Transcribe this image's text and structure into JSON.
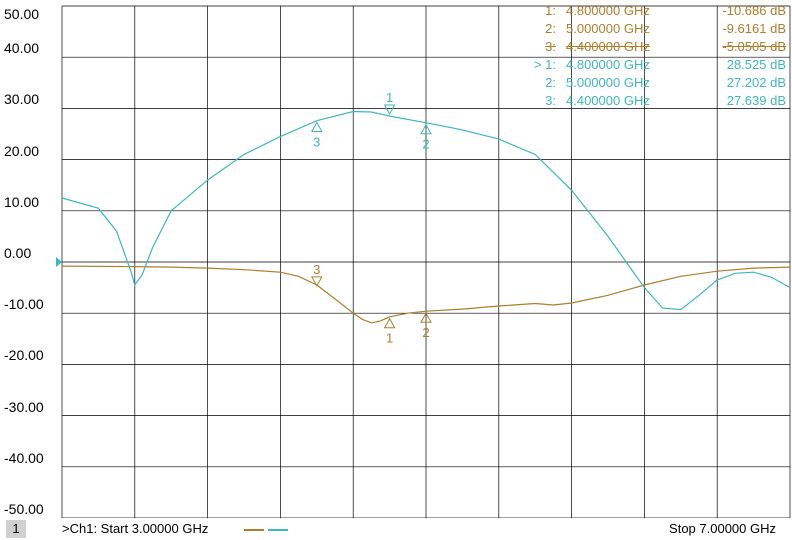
{
  "colors": {
    "ch1": "#b07d2b",
    "ch2": "#3fb6bf",
    "grid": "#000000"
  },
  "chart_data": {
    "type": "line",
    "xlim": [
      3.0,
      7.0
    ],
    "ylim": [
      -50,
      50
    ],
    "y_ticks": [
      "50.00",
      "40.00",
      "30.00",
      "20.00",
      "10.00",
      "0.00",
      "-10.00",
      "-20.00",
      "-30.00",
      "-40.00",
      "-50.00"
    ],
    "grid": true,
    "x_divisions": 10,
    "series": [
      {
        "color": "#b07d2b",
        "x": [
          3.0,
          3.4,
          3.6,
          3.8,
          4.0,
          4.2,
          4.3,
          4.4,
          4.5,
          4.6,
          4.65,
          4.7,
          4.75,
          4.8,
          4.9,
          5.0,
          5.2,
          5.4,
          5.6,
          5.7,
          5.8,
          6.0,
          6.2,
          6.4,
          6.6,
          6.8,
          7.0
        ],
        "y": [
          -0.8,
          -0.9,
          -1.0,
          -1.2,
          -1.5,
          -2.0,
          -2.8,
          -4.5,
          -7.2,
          -10.0,
          -11.2,
          -11.9,
          -11.5,
          -10.7,
          -10.0,
          -9.6,
          -9.2,
          -8.6,
          -8.1,
          -8.4,
          -8.0,
          -6.5,
          -4.5,
          -2.8,
          -1.8,
          -1.2,
          -1.0
        ]
      },
      {
        "color": "#3fb6bf",
        "x": [
          3.0,
          3.2,
          3.3,
          3.38,
          3.4,
          3.44,
          3.5,
          3.6,
          3.8,
          4.0,
          4.2,
          4.4,
          4.6,
          4.7,
          4.8,
          5.0,
          5.2,
          5.4,
          5.6,
          5.8,
          6.0,
          6.2,
          6.3,
          6.4,
          6.5,
          6.6,
          6.7,
          6.8,
          6.9,
          7.0
        ],
        "y": [
          12.5,
          10.5,
          6.0,
          -2.0,
          -4.5,
          -2.5,
          3.0,
          10.0,
          16.0,
          21.0,
          24.5,
          27.6,
          29.4,
          29.3,
          28.5,
          27.2,
          25.8,
          24.0,
          21.0,
          14.0,
          5.0,
          -5.0,
          -9.0,
          -9.3,
          -6.5,
          -3.5,
          -2.2,
          -2.0,
          -3.0,
          -5.0
        ]
      }
    ],
    "markers": [
      {
        "series": 0,
        "label": "1",
        "x": 4.8,
        "y": -10.686,
        "label_pos": "below"
      },
      {
        "series": 0,
        "label": "2",
        "x": 5.0,
        "y": -9.6161,
        "label_pos": "below"
      },
      {
        "series": 0,
        "label": "3",
        "x": 4.4,
        "y": -5.0505,
        "label_pos": "above",
        "inverted": true
      },
      {
        "series": 1,
        "label": "1",
        "x": 4.8,
        "y": 28.525,
        "label_pos": "above",
        "inverted": true
      },
      {
        "series": 1,
        "label": "2",
        "x": 5.0,
        "y": 27.202,
        "label_pos": "below"
      },
      {
        "series": 1,
        "label": "3",
        "x": 4.4,
        "y": 27.639,
        "label_pos": "below"
      }
    ],
    "marker_table": [
      {
        "series": 0,
        "num": "1:",
        "freq": "4.800000 GHz",
        "val": "-10.686 dB"
      },
      {
        "series": 0,
        "num": "2:",
        "freq": "5.000000 GHz",
        "val": "-9.6161 dB"
      },
      {
        "series": 0,
        "num": "3:",
        "freq": "4.400000 GHz",
        "val": "-5.0505 dB"
      },
      {
        "series": 1,
        "num": "> 1:",
        "freq": "4.800000 GHz",
        "val": "28.525 dB"
      },
      {
        "series": 1,
        "num": "2:",
        "freq": "5.000000 GHz",
        "val": "27.202 dB"
      },
      {
        "series": 1,
        "num": "3:",
        "freq": "4.400000 GHz",
        "val": "27.639 dB"
      }
    ]
  },
  "status": {
    "channel_number": "1",
    "start_label": ">Ch1: Start  3.00000 GHz",
    "stop_label": "Stop  7.00000 GHz"
  }
}
